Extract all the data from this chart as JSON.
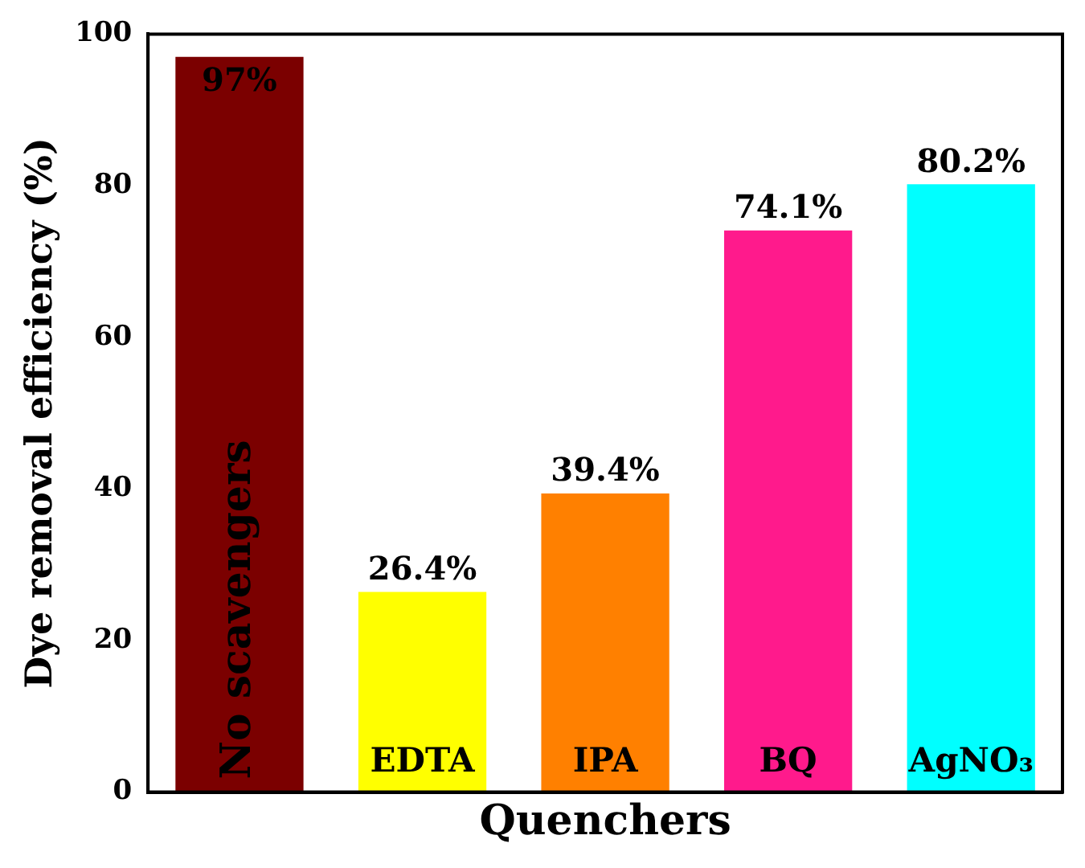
{
  "chart_data": {
    "type": "bar",
    "xlabel": "Quenchers",
    "ylabel": "Dye removal efficiency (%)",
    "categories": [
      "No scavengers",
      "EDTA",
      "IPA",
      "BQ",
      "AgNO₃"
    ],
    "values": [
      97,
      26.4,
      39.4,
      74.1,
      80.2
    ],
    "value_labels": [
      "97%",
      "26.4%",
      "39.4%",
      "74.1%",
      "80.2%"
    ],
    "colors": [
      "#7b0000",
      "#ffff00",
      "#ff8000",
      "#ff1a8c",
      "#00ffff"
    ],
    "ylim": [
      0,
      100
    ],
    "yticks": [
      0,
      20,
      40,
      60,
      80,
      100
    ],
    "grid": false,
    "legend": false
  }
}
